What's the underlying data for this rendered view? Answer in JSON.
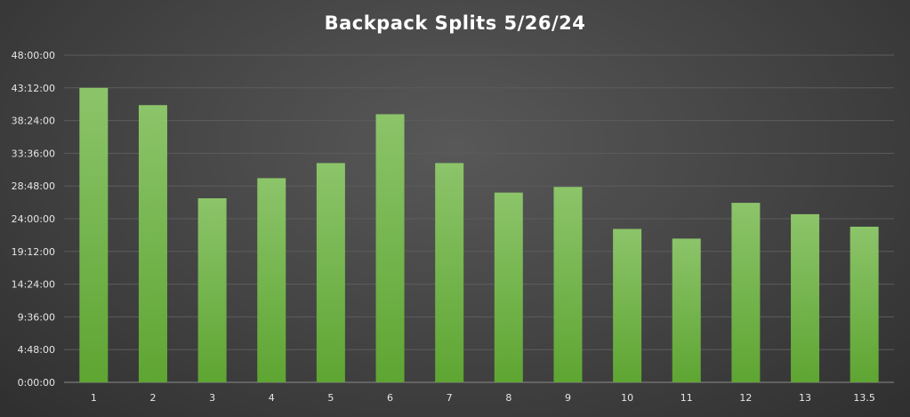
{
  "chart_data": {
    "type": "bar",
    "title": "Backpack Splits 5/26/24",
    "xlabel": "",
    "ylabel": "",
    "categories": [
      "1",
      "2",
      "3",
      "4",
      "5",
      "6",
      "7",
      "8",
      "9",
      "10",
      "11",
      "12",
      "13",
      "13.5"
    ],
    "values_seconds": [
      2592,
      2440,
      1620,
      1797,
      1930,
      2360,
      1930,
      1670,
      1720,
      1350,
      1265,
      1580,
      1480,
      1370
    ],
    "values_display": [
      "43:12",
      "40:40",
      "27:00",
      "29:57",
      "32:10",
      "39:20",
      "32:10",
      "27:50",
      "28:40",
      "22:30",
      "21:05",
      "26:20",
      "24:40",
      "22:50"
    ],
    "yticks": [
      "0:00:00",
      "4:48:00",
      "9:36:00",
      "14:24:00",
      "19:12:00",
      "24:00:00",
      "28:48:00",
      "33:36:00",
      "38:24:00",
      "43:12:00",
      "48:00:00"
    ],
    "ylim_seconds": [
      0,
      2880
    ],
    "grid": true,
    "legend": "none",
    "colors": {
      "bar_top": "#8cc46a",
      "bar_bottom": "#5ea532",
      "grid": "#5c5c5c",
      "axis": "#8a8a8a",
      "text": "#e6e6e6"
    }
  }
}
